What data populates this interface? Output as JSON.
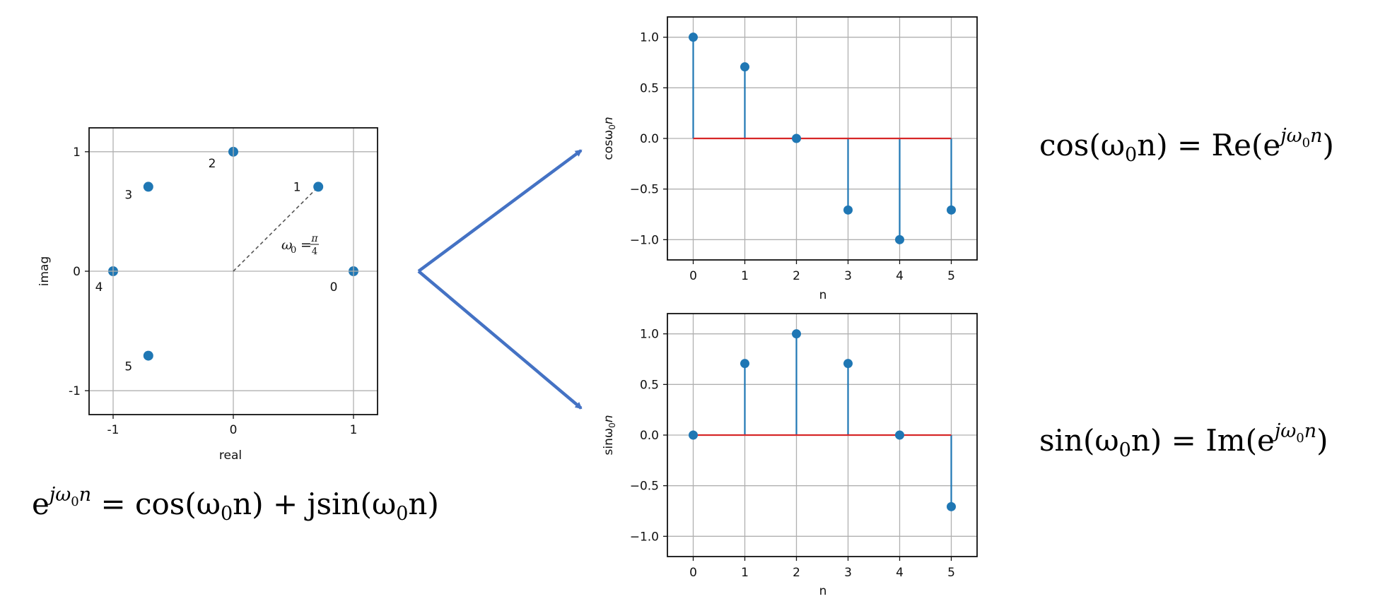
{
  "chart_data": [
    {
      "type": "scatter",
      "xlabel": "real",
      "ylabel": "imag",
      "xlim": [
        -1.2,
        1.2
      ],
      "ylim": [
        -1.2,
        1.2
      ],
      "grid": true,
      "xticks": [
        -1,
        0,
        1
      ],
      "yticks": [
        -1,
        0,
        1
      ],
      "xtick_labels": [
        "-1",
        "0",
        "1"
      ],
      "ytick_labels": [
        "-1",
        "0",
        "1"
      ],
      "points": [
        {
          "label": "0",
          "x": 1.0,
          "y": 0.0
        },
        {
          "label": "1",
          "x": 0.707,
          "y": 0.707
        },
        {
          "label": "2",
          "x": 0.0,
          "y": 1.0
        },
        {
          "label": "3",
          "x": -0.707,
          "y": 0.707
        },
        {
          "label": "4",
          "x": -1.0,
          "y": 0.0
        },
        {
          "label": "5",
          "x": -0.707,
          "y": -0.707
        }
      ],
      "annotation": {
        "omega_symbol": "ω",
        "omega_sub": "0",
        "equals": "=",
        "frac_num": "π",
        "frac_den": "4"
      },
      "color": "#1f77b4"
    },
    {
      "type": "stem",
      "xlabel": "n",
      "ylabel_main": "cosω",
      "ylabel_sub": "0",
      "ylabel_end": "n",
      "xlim": [
        -0.5,
        5.5
      ],
      "ylim": [
        -1.2,
        1.2
      ],
      "grid": true,
      "xticks": [
        0,
        1,
        2,
        3,
        4,
        5
      ],
      "yticks": [
        1.0,
        0.5,
        0.0,
        -0.5,
        -1.0
      ],
      "xtick_labels": [
        "0",
        "1",
        "2",
        "3",
        "4",
        "5"
      ],
      "ytick_labels": [
        "1.0",
        "0.5",
        "0.0",
        "−0.5",
        "−1.0"
      ],
      "x": [
        0,
        1,
        2,
        3,
        4,
        5
      ],
      "y": [
        1.0,
        0.707,
        0.0,
        -0.707,
        -1.0,
        -0.707
      ],
      "color": "#1f77b4",
      "baseline_color": "#d62728"
    },
    {
      "type": "stem",
      "xlabel": "n",
      "ylabel_main": "sinω",
      "ylabel_sub": "0",
      "ylabel_end": "n",
      "xlim": [
        -0.5,
        5.5
      ],
      "ylim": [
        -1.2,
        1.2
      ],
      "grid": true,
      "xticks": [
        0,
        1,
        2,
        3,
        4,
        5
      ],
      "yticks": [
        1.0,
        0.5,
        0.0,
        -0.5,
        -1.0
      ],
      "xtick_labels": [
        "0",
        "1",
        "2",
        "3",
        "4",
        "5"
      ],
      "ytick_labels": [
        "1.0",
        "0.5",
        "0.0",
        "−0.5",
        "−1.0"
      ],
      "x": [
        0,
        1,
        2,
        3,
        4,
        5
      ],
      "y": [
        0.0,
        0.707,
        1.0,
        0.707,
        0.0,
        -0.707
      ],
      "color": "#1f77b4",
      "baseline_color": "#d62728"
    }
  ],
  "formulas": {
    "euler": {
      "e": "e",
      "sup": "jω",
      "sup_sub": "0",
      "sup_end": "n",
      "rest1": " = cos(ω",
      "sub1": "0",
      "rest2": "n) + jsin(ω",
      "sub2": "0",
      "rest3": "n)"
    },
    "cos": {
      "lead": "cos(ω",
      "sub1": "0",
      "mid": "n) = Re(e",
      "sup": "jω",
      "sup_sub": "0",
      "sup_end": "n",
      "close": ")"
    },
    "sin": {
      "lead": "sin(ω",
      "sub1": "0",
      "mid": "n) = Im(e",
      "sup": "jω",
      "sup_sub": "0",
      "sup_end": "n",
      "close": ")"
    }
  },
  "arrow_color": "#4472c4"
}
